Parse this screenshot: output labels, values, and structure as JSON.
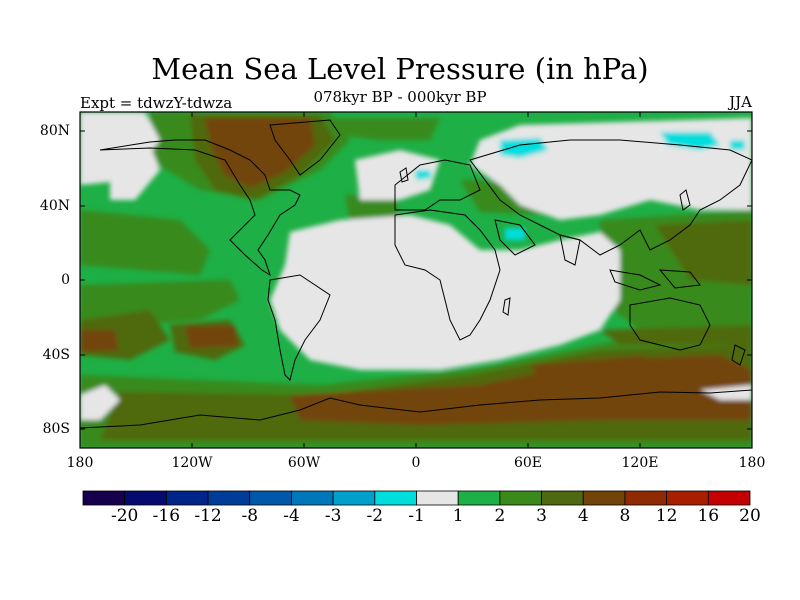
{
  "figure": {
    "title": "Mean Sea Level Pressure (in hPa)",
    "subtitle": "078kyr BP - 000kyr BP",
    "left_string": "Expt = tdwzY-tdwza",
    "right_string": "JJA"
  },
  "axes": {
    "lat_labels": [
      "80N",
      "40N",
      "0",
      "40S",
      "80S"
    ],
    "lon_labels": [
      "180",
      "120W",
      "60W",
      "0",
      "60E",
      "120E",
      "180"
    ]
  },
  "colorbar": {
    "labels": [
      "-20",
      "-16",
      "-12",
      "-8",
      "-4",
      "-3",
      "-2",
      "-1",
      "1",
      "2",
      "3",
      "4",
      "8",
      "12",
      "16",
      "20"
    ],
    "colors": [
      "#16004e",
      "#040a6e",
      "#00258a",
      "#003d99",
      "#0058aa",
      "#0077bb",
      "#00a0cc",
      "#00dddd",
      "#e6e6e6",
      "#1eaf46",
      "#398a1a",
      "#4f6910",
      "#72440a",
      "#8f2a04",
      "#a81f00",
      "#c40000"
    ]
  },
  "map": {
    "projection": "cylindrical equidistant",
    "neutral_color": "#e6e6e6",
    "positive_colors": {
      "1-2": "#1eaf46",
      "2-3": "#398a1a",
      "3-4": "#4f6910",
      "4-8": "#72440a"
    },
    "negative_colors": {
      "-1 to -2": "#00dddd"
    }
  }
}
